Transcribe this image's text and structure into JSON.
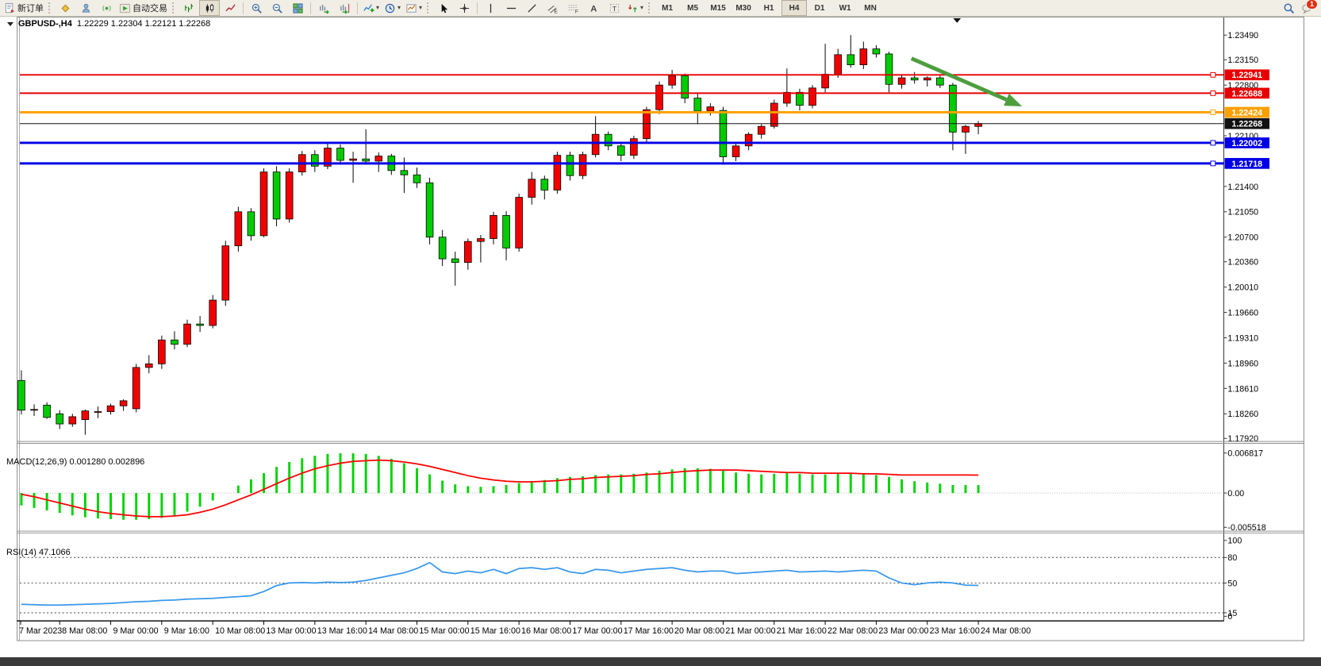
{
  "toolbar": {
    "new_order": "新订单",
    "auto_trading": "自动交易",
    "timeframes": [
      "M1",
      "M5",
      "M15",
      "M30",
      "H1",
      "H4",
      "D1",
      "W1",
      "MN"
    ],
    "active_timeframe": "H4",
    "notification_count": "1"
  },
  "chart": {
    "title": "GBPUSD-,H4",
    "ohlc_text": "1.22229 1.22304 1.22121 1.22268"
  },
  "chart_data": {
    "type": "candlestick",
    "symbol": "GBPUSD-",
    "timeframe": "H4",
    "current_bar": {
      "open": "1.22229",
      "high": "1.22304",
      "low": "1.22121",
      "close": "1.22268"
    },
    "ylim": [
      1.179,
      1.2367
    ],
    "price_axis_ticks": [
      "1.23490",
      "1.23150",
      "1.22800",
      "1.22100",
      "1.21400",
      "1.21050",
      "1.20700",
      "1.20360",
      "1.20010",
      "1.19660",
      "1.19310",
      "1.18960",
      "1.18610",
      "1.18260",
      "1.17920"
    ],
    "x_labels": [
      "7 Mar 2023",
      "8 Mar 08:00",
      "9 Mar 00:00",
      "9 Mar 16:00",
      "10 Mar 08:00",
      "13 Mar 00:00",
      "13 Mar 16:00",
      "14 Mar 08:00",
      "15 Mar 00:00",
      "15 Mar 16:00",
      "16 Mar 08:00",
      "17 Mar 00:00",
      "17 Mar 16:00",
      "20 Mar 08:00",
      "21 Mar 00:00",
      "21 Mar 16:00",
      "22 Mar 08:00",
      "23 Mar 00:00",
      "23 Mar 16:00",
      "24 Mar 08:00"
    ],
    "colors": {
      "up": "#f20000",
      "down": "#00cc00",
      "outline": "#000000",
      "macd_hist": "#00d400",
      "macd_signal": "#ff0000",
      "rsi_line": "#3898ec",
      "arrow": "#4d9e3d"
    },
    "candles": [
      [
        1.1872,
        1.1886,
        1.1825,
        1.1831
      ],
      [
        1.1831,
        1.1839,
        1.1823,
        1.1832
      ],
      [
        1.1838,
        1.1842,
        1.1819,
        1.1821
      ],
      [
        1.1826,
        1.1831,
        1.1805,
        1.1812
      ],
      [
        1.1812,
        1.1826,
        1.1808,
        1.1822
      ],
      [
        1.1818,
        1.1832,
        1.1797,
        1.183
      ],
      [
        1.1828,
        1.1836,
        1.182,
        1.1829
      ],
      [
        1.1829,
        1.184,
        1.1825,
        1.1837
      ],
      [
        1.1837,
        1.1846,
        1.183,
        1.1844
      ],
      [
        1.1833,
        1.1895,
        1.1828,
        1.189
      ],
      [
        1.189,
        1.1907,
        1.1882,
        1.1895
      ],
      [
        1.1895,
        1.1934,
        1.1888,
        1.1928
      ],
      [
        1.1928,
        1.194,
        1.1915,
        1.1922
      ],
      [
        1.1922,
        1.1956,
        1.1918,
        1.195
      ],
      [
        1.195,
        1.1961,
        1.1939,
        1.1948
      ],
      [
        1.1948,
        1.199,
        1.1944,
        1.1983
      ],
      [
        1.1983,
        1.2065,
        1.1975,
        1.2058
      ],
      [
        1.2058,
        1.2112,
        1.205,
        1.2105
      ],
      [
        1.2105,
        1.211,
        1.2065,
        1.2072
      ],
      [
        1.2072,
        1.2165,
        1.207,
        1.216
      ],
      [
        1.216,
        1.2168,
        1.2085,
        1.2095
      ],
      [
        1.2095,
        1.2165,
        1.209,
        1.216
      ],
      [
        1.216,
        1.2189,
        1.2155,
        1.2184
      ],
      [
        1.2184,
        1.219,
        1.216,
        1.2168
      ],
      [
        1.2168,
        1.2199,
        1.2164,
        1.2193
      ],
      [
        1.2193,
        1.2198,
        1.217,
        1.2176
      ],
      [
        1.2176,
        1.2188,
        1.2145,
        1.2178
      ],
      [
        1.2178,
        1.2219,
        1.217,
        1.2175
      ],
      [
        1.2175,
        1.2187,
        1.216,
        1.2182
      ],
      [
        1.2182,
        1.2185,
        1.2156,
        1.2162
      ],
      [
        1.2162,
        1.218,
        1.2131,
        1.2156
      ],
      [
        1.2156,
        1.2166,
        1.2138,
        1.2145
      ],
      [
        1.2145,
        1.2152,
        1.206,
        1.207
      ],
      [
        1.207,
        1.208,
        1.203,
        1.204
      ],
      [
        1.204,
        1.205,
        1.2003,
        1.2035
      ],
      [
        1.2035,
        1.2068,
        1.2025,
        1.2064
      ],
      [
        1.2064,
        1.2073,
        1.2035,
        1.2068
      ],
      [
        1.2068,
        1.2105,
        1.206,
        1.21
      ],
      [
        1.21,
        1.2106,
        1.2038,
        1.2055
      ],
      [
        1.2055,
        1.213,
        1.205,
        1.2125
      ],
      [
        1.2125,
        1.216,
        1.2115,
        1.215
      ],
      [
        1.215,
        1.2155,
        1.2122,
        1.2135
      ],
      [
        1.2135,
        1.2188,
        1.213,
        1.2183
      ],
      [
        1.2183,
        1.2188,
        1.2148,
        1.2155
      ],
      [
        1.2155,
        1.2188,
        1.215,
        1.2184
      ],
      [
        1.2184,
        1.2237,
        1.218,
        1.2212
      ],
      [
        1.2212,
        1.2216,
        1.219,
        1.2196
      ],
      [
        1.2196,
        1.22,
        1.2175,
        1.2183
      ],
      [
        1.2183,
        1.221,
        1.2178,
        1.2206
      ],
      [
        1.2206,
        1.225,
        1.22,
        1.2246
      ],
      [
        1.2246,
        1.2285,
        1.224,
        1.228
      ],
      [
        1.228,
        1.2301,
        1.2275,
        1.2293
      ],
      [
        1.2293,
        1.2296,
        1.2255,
        1.2262
      ],
      [
        1.2262,
        1.2268,
        1.2226,
        1.2244
      ],
      [
        1.2244,
        1.2255,
        1.2238,
        1.225
      ],
      [
        1.2245,
        1.225,
        1.217,
        1.2181
      ],
      [
        1.2181,
        1.22,
        1.2175,
        1.2196
      ],
      [
        1.2196,
        1.2215,
        1.219,
        1.2212
      ],
      [
        1.2212,
        1.2226,
        1.2206,
        1.2223
      ],
      [
        1.2223,
        1.226,
        1.222,
        1.2255
      ],
      [
        1.2255,
        1.2303,
        1.225,
        1.227
      ],
      [
        1.227,
        1.2275,
        1.2245,
        1.2252
      ],
      [
        1.2252,
        1.228,
        1.2248,
        1.2276
      ],
      [
        1.2276,
        1.2337,
        1.227,
        1.2295
      ],
      [
        1.2295,
        1.233,
        1.229,
        1.2322
      ],
      [
        1.2322,
        1.2349,
        1.2304,
        1.2308
      ],
      [
        1.2308,
        1.234,
        1.2302,
        1.233
      ],
      [
        1.233,
        1.2335,
        1.2318,
        1.2323
      ],
      [
        1.2323,
        1.2326,
        1.227,
        1.2281
      ],
      [
        1.2281,
        1.2295,
        1.2275,
        1.229
      ],
      [
        1.229,
        1.2298,
        1.2282,
        1.2287
      ],
      [
        1.2287,
        1.2292,
        1.2278,
        1.229
      ],
      [
        1.229,
        1.2293,
        1.2276,
        1.228
      ],
      [
        1.228,
        1.2283,
        1.219,
        1.2215
      ],
      [
        1.2215,
        1.2225,
        1.2185,
        1.2223
      ],
      [
        1.22229,
        1.22304,
        1.22121,
        1.22268
      ]
    ],
    "hlines": [
      {
        "price": "1.22941",
        "color": "#e80000",
        "width": 2,
        "marker": true
      },
      {
        "price": "1.22688",
        "color": "#e80000",
        "width": 2,
        "marker": true
      },
      {
        "price": "1.22424",
        "color": "#ffa000",
        "width": 3,
        "marker": true
      },
      {
        "price": "1.22268",
        "color": "#111111",
        "width": 1,
        "marker": false,
        "role": "bid"
      },
      {
        "price": "1.22002",
        "color": "#0000e8",
        "width": 3,
        "marker": true
      },
      {
        "price": "1.21718",
        "color": "#0000e8",
        "width": 3,
        "marker": true
      }
    ],
    "annotation_arrow": {
      "from": [
        1157,
        75
      ],
      "to": [
        1300,
        137
      ]
    },
    "macd": {
      "label": "MACD(12,26,9)",
      "values_label": "0.001280 0.002896",
      "ylim": [
        -0.005518,
        0.006817
      ],
      "axis_ticks": [
        "0.006817",
        "0.00",
        "-0.005518"
      ],
      "histogram": [
        -0.002,
        -0.0024,
        -0.0028,
        -0.0032,
        -0.0036,
        -0.0039,
        -0.0041,
        -0.0042,
        -0.0043,
        -0.0043,
        -0.0042,
        -0.004,
        -0.0036,
        -0.003,
        -0.0022,
        -0.0012,
        0.0,
        0.0012,
        0.0022,
        0.0032,
        0.0042,
        0.005,
        0.0056,
        0.006,
        0.0063,
        0.0064,
        0.0064,
        0.0063,
        0.006,
        0.0055,
        0.0048,
        0.004,
        0.003,
        0.002,
        0.0014,
        0.0011,
        0.001,
        0.0011,
        0.0013,
        0.0016,
        0.0019,
        0.0021,
        0.0024,
        0.0026,
        0.0027,
        0.0029,
        0.003,
        0.003,
        0.0031,
        0.0033,
        0.0036,
        0.0038,
        0.004,
        0.004,
        0.0039,
        0.0036,
        0.0033,
        0.0031,
        0.003,
        0.0031,
        0.0032,
        0.0031,
        0.003,
        0.003,
        0.0031,
        0.0032,
        0.0031,
        0.0029,
        0.0026,
        0.0022,
        0.0019,
        0.0017,
        0.0015,
        0.0013,
        0.0013,
        0.00128
      ],
      "signal": [
        -0.0002,
        -0.0006,
        -0.0011,
        -0.0016,
        -0.0021,
        -0.0026,
        -0.003,
        -0.0033,
        -0.0035,
        -0.0037,
        -0.0038,
        -0.0038,
        -0.0037,
        -0.0035,
        -0.0031,
        -0.0026,
        -0.0019,
        -0.0011,
        -0.0003,
        0.0006,
        0.0015,
        0.0024,
        0.0032,
        0.0039,
        0.0044,
        0.0048,
        0.0051,
        0.0052,
        0.0053,
        0.0052,
        0.005,
        0.0047,
        0.0043,
        0.0038,
        0.0033,
        0.0028,
        0.0024,
        0.0021,
        0.0019,
        0.0018,
        0.0018,
        0.0019,
        0.002,
        0.0022,
        0.0023,
        0.0025,
        0.0026,
        0.0027,
        0.0028,
        0.003,
        0.0031,
        0.0033,
        0.0035,
        0.0036,
        0.0037,
        0.0037,
        0.0037,
        0.0036,
        0.0035,
        0.0034,
        0.0033,
        0.0033,
        0.0032,
        0.0032,
        0.0032,
        0.0032,
        0.0031,
        0.0031,
        0.003,
        0.0029,
        0.0029,
        0.0029,
        0.0029,
        0.0029,
        0.0029,
        0.002896
      ]
    },
    "rsi": {
      "label": "RSI(14)",
      "value_label": "47.1066",
      "axis_ticks": [
        "100",
        "80",
        "50",
        "15",
        "0"
      ],
      "levels": [
        80,
        50,
        15
      ],
      "values": [
        25,
        24.5,
        24,
        24,
        24.5,
        25,
        25.5,
        26,
        27,
        28,
        28.5,
        29.5,
        30,
        31,
        31.5,
        32,
        33,
        34,
        35,
        40,
        47,
        50,
        50.5,
        50,
        51,
        50.5,
        51,
        53,
        56,
        59,
        62,
        67,
        74,
        63,
        61,
        64,
        62,
        66,
        61,
        67,
        68,
        66,
        68,
        63,
        61,
        66,
        65,
        62,
        64,
        66,
        67,
        68,
        65,
        63,
        64,
        64,
        61,
        62,
        63,
        64,
        65,
        63,
        63.5,
        64,
        63,
        64,
        65,
        64,
        56,
        50,
        48,
        50,
        51,
        50,
        47.5,
        47.1
      ]
    }
  }
}
